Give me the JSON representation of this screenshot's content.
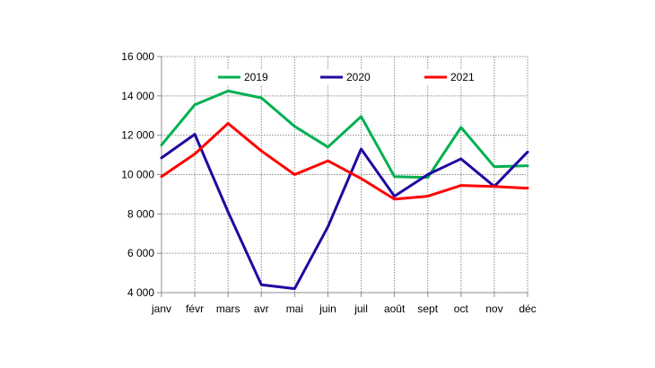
{
  "chart_data": {
    "type": "line",
    "categories": [
      "janv",
      "févr",
      "mars",
      "avr",
      "mai",
      "juin",
      "juil",
      "août",
      "sept",
      "oct",
      "nov",
      "déc"
    ],
    "series": [
      {
        "name": "2019",
        "color": "#00b050",
        "values": [
          11500,
          13550,
          14250,
          13900,
          12450,
          11400,
          12950,
          9900,
          9850,
          12400,
          10400,
          10450
        ]
      },
      {
        "name": "2020",
        "color": "#1f0aa0",
        "values": [
          10850,
          12050,
          8100,
          4400,
          4200,
          7350,
          11300,
          8900,
          10000,
          10800,
          9400,
          11150
        ]
      },
      {
        "name": "2021",
        "color": "#ff0000",
        "values": [
          9900,
          11050,
          12600,
          11200,
          10000,
          10700,
          9800,
          8750,
          8900,
          9450,
          9400,
          9300
        ]
      }
    ],
    "y_tick_labels": [
      "4 000",
      "6 000",
      "8 000",
      "10 000",
      "12 000",
      "14 000",
      "16 000"
    ],
    "ylim": [
      4000,
      16000
    ],
    "y_step": 2000,
    "grid": "dotted",
    "legend": "top"
  }
}
